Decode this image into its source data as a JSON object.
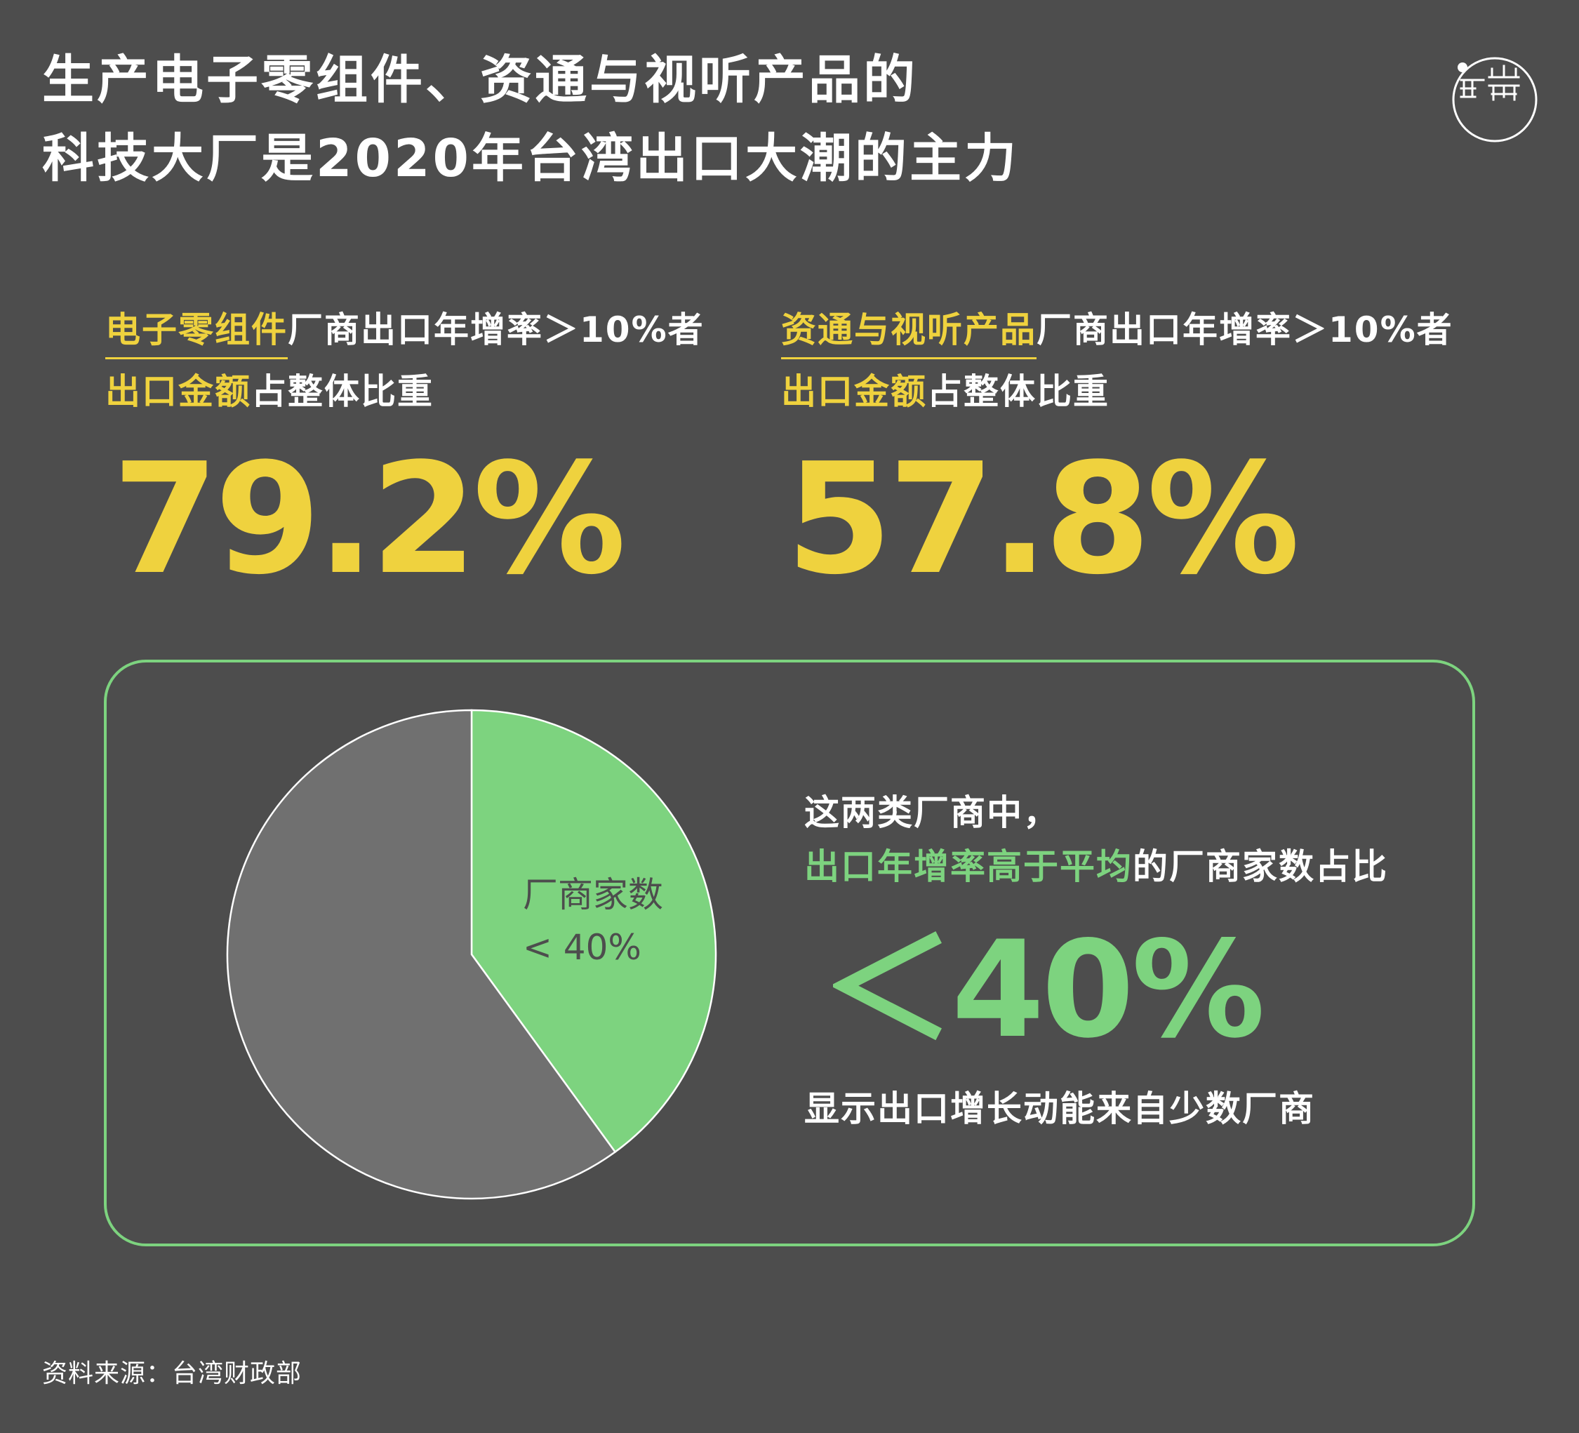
{
  "header": {
    "title_line1": "生产电子零组件、资通与视听产品的",
    "title_line2": "科技大厂是2020年台湾出口大潮的主力"
  },
  "logo": {
    "icon": "端-logo-icon"
  },
  "stats": [
    {
      "highlight": "电子零组件",
      "rest": "厂商出口年增率＞10%者",
      "line2_highlight": "出口金额",
      "line2_rest": "占整体比重",
      "value": "79.2%"
    },
    {
      "highlight": "资通与视听产品",
      "rest": "厂商出口年增率＞10%者",
      "line2_highlight": "出口金额",
      "line2_rest": "占整体比重",
      "value": "57.8%"
    }
  ],
  "panel": {
    "line1": "这两类厂商中，",
    "line2_highlight": "出口年增率高于平均",
    "line2_rest": "的厂商家数占比",
    "big_value": "＜40%",
    "footer_line": "显示出口增长动能来自少数厂商"
  },
  "chart_data": {
    "type": "pie",
    "slices": [
      {
        "label": "厂商家数",
        "sublabel": "< 40%",
        "value": 40,
        "color": "#7dd37f"
      },
      {
        "label": "",
        "value": 60,
        "color": "#707070"
      }
    ]
  },
  "source": "资料来源：台湾财政部",
  "colors": {
    "background": "#4d4d4d",
    "yellow": "#efd23e",
    "green": "#7dd37f",
    "grey_slice": "#707070"
  }
}
